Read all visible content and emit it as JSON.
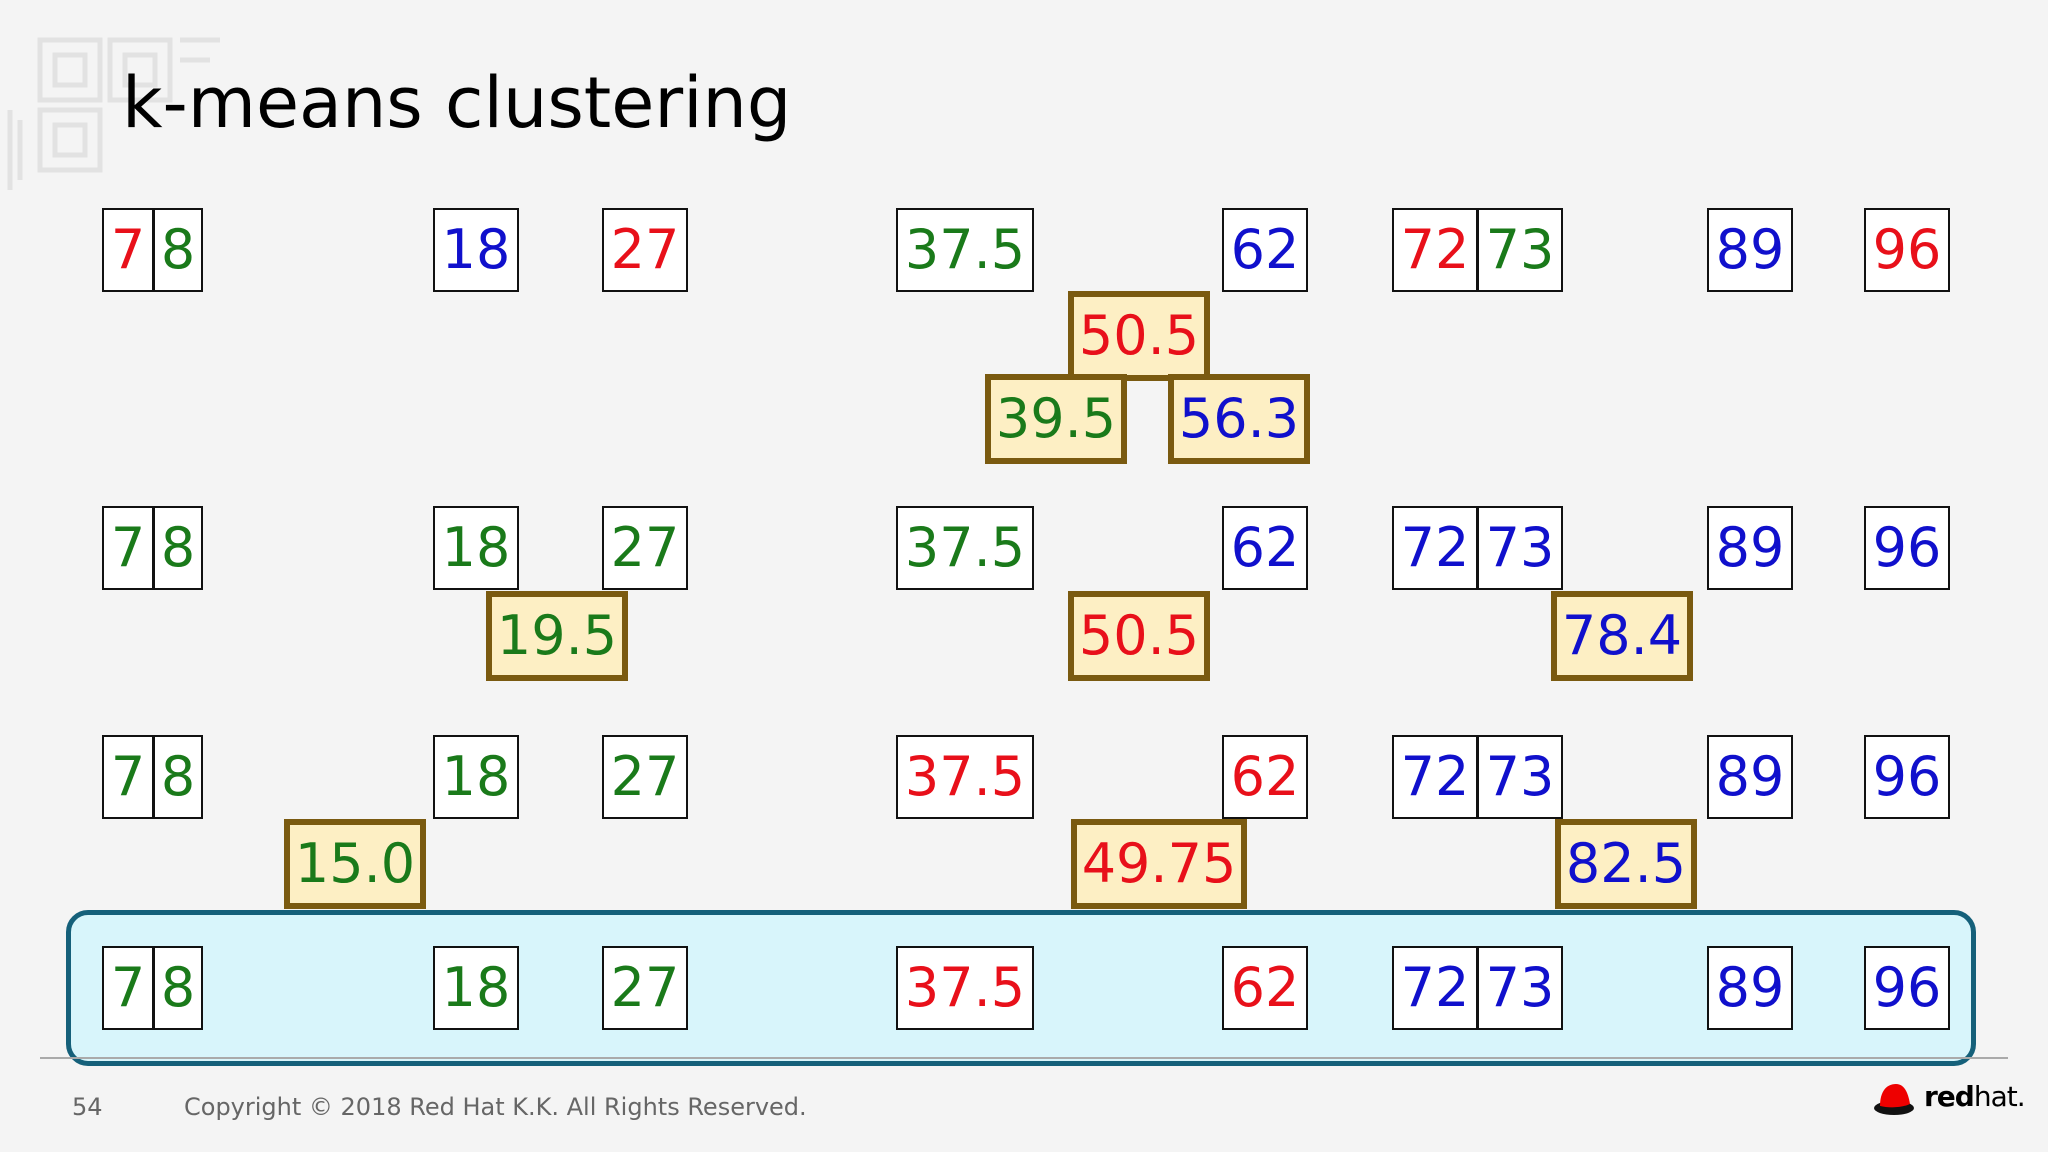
{
  "slide": {
    "title": "k-means clustering",
    "page_number": "54",
    "copyright": "Copyright © 2018 Red Hat K.K. All Rights Reserved.",
    "logo": {
      "bold": "red",
      "regular": "hat."
    }
  },
  "colors": {
    "red": "#e8101a",
    "green": "#1a7a1a",
    "blue": "#1010cc",
    "centroid_border": "#7a5a10",
    "centroid_fill": "#fdefc4",
    "highlight_fill": "#d8f5fb",
    "highlight_border": "#15607a"
  },
  "rows": [
    {
      "points": [
        {
          "v": "7",
          "c": "red"
        },
        {
          "v": "8",
          "c": "green"
        },
        {
          "v": "18",
          "c": "blue"
        },
        {
          "v": "27",
          "c": "red"
        },
        {
          "v": "37.5",
          "c": "green"
        },
        {
          "v": "62",
          "c": "blue"
        },
        {
          "v": "72",
          "c": "red"
        },
        {
          "v": "73",
          "c": "green"
        },
        {
          "v": "89",
          "c": "blue"
        },
        {
          "v": "96",
          "c": "red"
        }
      ],
      "centroids": [
        {
          "v": "50.5",
          "c": "red"
        },
        {
          "v": "39.5",
          "c": "green"
        },
        {
          "v": "56.3",
          "c": "blue"
        }
      ]
    },
    {
      "points": [
        {
          "v": "7",
          "c": "green"
        },
        {
          "v": "8",
          "c": "green"
        },
        {
          "v": "18",
          "c": "green"
        },
        {
          "v": "27",
          "c": "green"
        },
        {
          "v": "37.5",
          "c": "green"
        },
        {
          "v": "62",
          "c": "blue"
        },
        {
          "v": "72",
          "c": "blue"
        },
        {
          "v": "73",
          "c": "blue"
        },
        {
          "v": "89",
          "c": "blue"
        },
        {
          "v": "96",
          "c": "blue"
        }
      ],
      "centroids": [
        {
          "v": "19.5",
          "c": "green"
        },
        {
          "v": "50.5",
          "c": "red"
        },
        {
          "v": "78.4",
          "c": "blue"
        }
      ]
    },
    {
      "points": [
        {
          "v": "7",
          "c": "green"
        },
        {
          "v": "8",
          "c": "green"
        },
        {
          "v": "18",
          "c": "green"
        },
        {
          "v": "27",
          "c": "green"
        },
        {
          "v": "37.5",
          "c": "red"
        },
        {
          "v": "62",
          "c": "red"
        },
        {
          "v": "72",
          "c": "blue"
        },
        {
          "v": "73",
          "c": "blue"
        },
        {
          "v": "89",
          "c": "blue"
        },
        {
          "v": "96",
          "c": "blue"
        }
      ],
      "centroids": [
        {
          "v": "15.0",
          "c": "green"
        },
        {
          "v": "49.75",
          "c": "red"
        },
        {
          "v": "82.5",
          "c": "blue"
        }
      ]
    },
    {
      "points": [
        {
          "v": "7",
          "c": "green"
        },
        {
          "v": "8",
          "c": "green"
        },
        {
          "v": "18",
          "c": "green"
        },
        {
          "v": "27",
          "c": "green"
        },
        {
          "v": "37.5",
          "c": "red"
        },
        {
          "v": "62",
          "c": "red"
        },
        {
          "v": "72",
          "c": "blue"
        },
        {
          "v": "73",
          "c": "blue"
        },
        {
          "v": "89",
          "c": "blue"
        },
        {
          "v": "96",
          "c": "blue"
        }
      ],
      "centroids": []
    }
  ]
}
